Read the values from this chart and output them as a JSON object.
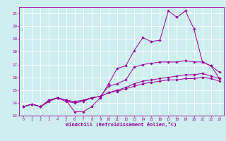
{
  "title": "",
  "xlabel": "Windchill (Refroidissement éolien,°C)",
  "ylabel": "",
  "xlim": [
    -0.5,
    23.5
  ],
  "ylim": [
    13,
    21.5
  ],
  "xticks": [
    0,
    1,
    2,
    3,
    4,
    5,
    6,
    7,
    8,
    9,
    10,
    11,
    12,
    13,
    14,
    15,
    16,
    17,
    18,
    19,
    20,
    21,
    22,
    23
  ],
  "yticks": [
    13,
    14,
    15,
    16,
    17,
    18,
    19,
    20,
    21
  ],
  "background_color": "#ceeef0",
  "line_color": "#990099",
  "grid_color": "#ffffff",
  "lines": [
    {
      "x": [
        0,
        1,
        2,
        3,
        4,
        5,
        6,
        7,
        8,
        9,
        10,
        11,
        12,
        13,
        14,
        15,
        16,
        17,
        18,
        19,
        20,
        21,
        22,
        23
      ],
      "y": [
        13.7,
        13.9,
        13.7,
        14.1,
        14.4,
        14.2,
        13.3,
        13.3,
        13.7,
        14.4,
        15.5,
        16.7,
        16.9,
        18.1,
        19.1,
        18.8,
        18.9,
        21.2,
        20.7,
        21.2,
        19.8,
        17.2,
        16.9,
        15.9
      ]
    },
    {
      "x": [
        0,
        1,
        2,
        3,
        4,
        5,
        6,
        7,
        8,
        9,
        10,
        11,
        12,
        13,
        14,
        15,
        16,
        17,
        18,
        19,
        20,
        21,
        22,
        23
      ],
      "y": [
        13.7,
        13.9,
        13.7,
        14.2,
        14.4,
        14.1,
        14.0,
        14.1,
        14.4,
        14.5,
        15.3,
        15.5,
        15.8,
        16.8,
        17.0,
        17.1,
        17.2,
        17.2,
        17.2,
        17.3,
        17.2,
        17.2,
        16.9,
        16.4
      ]
    },
    {
      "x": [
        0,
        1,
        2,
        3,
        4,
        5,
        6,
        7,
        8,
        9,
        10,
        11,
        12,
        13,
        14,
        15,
        16,
        17,
        18,
        19,
        20,
        21,
        22,
        23
      ],
      "y": [
        13.7,
        13.9,
        13.7,
        14.2,
        14.4,
        14.2,
        14.1,
        14.2,
        14.4,
        14.5,
        14.8,
        15.0,
        15.2,
        15.5,
        15.7,
        15.8,
        15.9,
        16.0,
        16.1,
        16.2,
        16.2,
        16.3,
        16.1,
        15.9
      ]
    },
    {
      "x": [
        0,
        1,
        2,
        3,
        4,
        5,
        6,
        7,
        8,
        9,
        10,
        11,
        12,
        13,
        14,
        15,
        16,
        17,
        18,
        19,
        20,
        21,
        22,
        23
      ],
      "y": [
        13.7,
        13.9,
        13.7,
        14.2,
        14.4,
        14.2,
        14.1,
        14.2,
        14.4,
        14.5,
        14.8,
        14.9,
        15.1,
        15.3,
        15.5,
        15.6,
        15.7,
        15.8,
        15.8,
        15.9,
        15.9,
        16.0,
        15.9,
        15.7
      ]
    }
  ]
}
